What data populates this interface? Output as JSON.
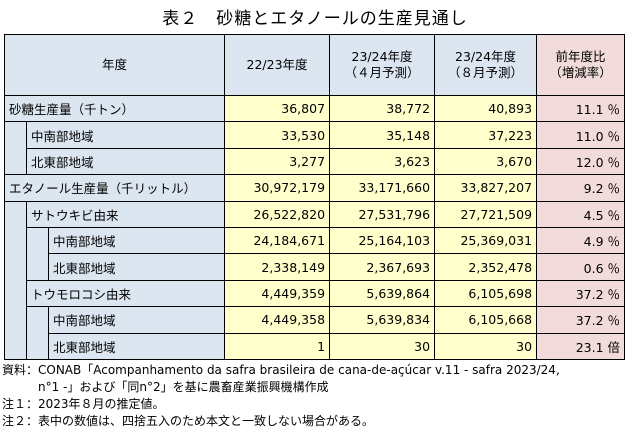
{
  "title": "表２　砂糖とエタノールの生産見通し",
  "header": {
    "category": "年度",
    "col1": "22/23年度",
    "col2_line1": "23/24年度",
    "col2_line2": "（４月予測）",
    "col3_line1": "23/24年度",
    "col3_line2": "（８月予測）",
    "col4_line1": "前年度比",
    "col4_line2": "（増減率）"
  },
  "rows": [
    {
      "label": "砂糖生産量（千トン）",
      "v1": "36,807",
      "v2": "38,772",
      "v3": "40,893",
      "v4": "11.1 ％"
    },
    {
      "label": "中南部地域",
      "v1": "33,530",
      "v2": "35,148",
      "v3": "37,223",
      "v4": "11.0 ％"
    },
    {
      "label": "北東部地域",
      "v1": "3,277",
      "v2": "3,623",
      "v3": "3,670",
      "v4": "12.0 ％"
    },
    {
      "label": "エタノール生産量（千リットル）",
      "v1": "30,972,179",
      "v2": "33,171,660",
      "v3": "33,827,207",
      "v4": "9.2 ％"
    },
    {
      "label": "サトウキビ由来",
      "v1": "26,522,820",
      "v2": "27,531,796",
      "v3": "27,721,509",
      "v4": "4.5 ％"
    },
    {
      "label": "中南部地域",
      "v1": "24,184,671",
      "v2": "25,164,103",
      "v3": "25,369,031",
      "v4": "4.9 ％"
    },
    {
      "label": "北東部地域",
      "v1": "2,338,149",
      "v2": "2,367,693",
      "v3": "2,352,478",
      "v4": "0.6 ％"
    },
    {
      "label": "トウモロコシ由来",
      "v1": "4,449,359",
      "v2": "5,639,864",
      "v3": "6,105,698",
      "v4": "37.2 ％"
    },
    {
      "label": "中南部地域",
      "v1": "4,449,358",
      "v2": "5,639,834",
      "v3": "6,105,668",
      "v4": "37.2 ％"
    },
    {
      "label": "北東部地域",
      "v1": "1",
      "v2": "30",
      "v3": "30",
      "v4": "23.1 倍"
    }
  ],
  "notes": {
    "source_line1": "資料：CONAB「Acompanhamento da safra brasileira de cana-de-açúcar v.11 - safra 2023/24,",
    "source_line2": "n°1 -」および「同n°2」を基に農畜産業振興機構作成",
    "note1": "注１：2023年８月の推定値。",
    "note2": "注２：表中の数値は、四捨五入のため本文と一致しない場合がある。"
  }
}
